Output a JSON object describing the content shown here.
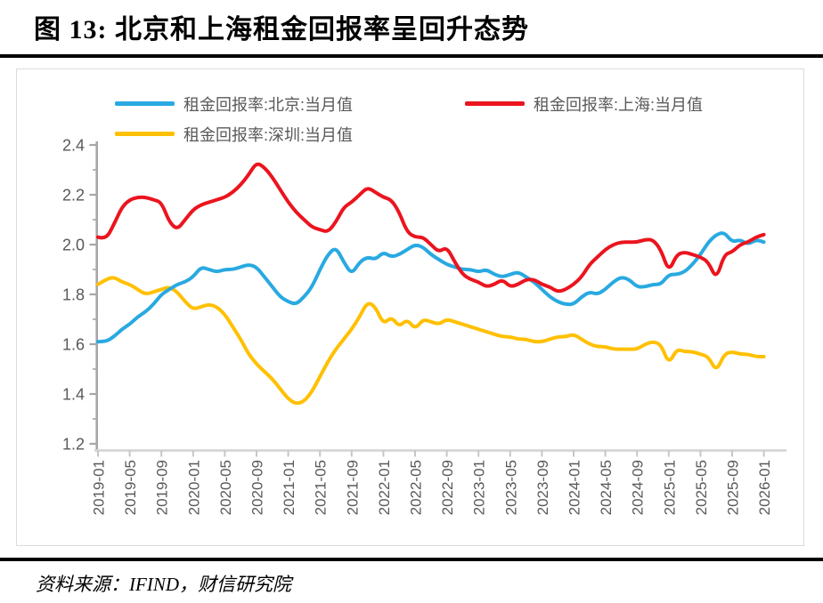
{
  "title": "图 13:  北京和上海租金回报率呈回升态势",
  "source": "资料来源：IFIND，财信研究院",
  "colors": {
    "beijing_line": "#29A9E1",
    "shanghai_line": "#EB141E",
    "shenzhen_line": "#FFC000",
    "axis_text": "#595959",
    "y_axis_line": "#A6A6A6",
    "x_axis_line": "#D6D6D6",
    "panel_border": "#DBDBDB",
    "rule_black": "#000000"
  },
  "chart_data": {
    "type": "line",
    "title": "图 13:  北京和上海租金回报率呈回升态势",
    "xlabel": "",
    "ylabel": "",
    "x_start": "2019-01",
    "x_interval_months": 1,
    "x_tick_labels": [
      "2019-01",
      "2019-05",
      "2019-09",
      "2020-01",
      "2020-05",
      "2020-09",
      "2021-01",
      "2021-05",
      "2021-09",
      "2022-01",
      "2022-05",
      "2022-09",
      "2023-01",
      "2023-05",
      "2023-09",
      "2024-01",
      "2024-05",
      "2024-09",
      "2025-01",
      "2025-05",
      "2025-09",
      "2026-01"
    ],
    "ylim": [
      1.2,
      2.4
    ],
    "y_tick_step": 0.2,
    "y_minor_tick_step": 0.1,
    "grid": false,
    "legend_position": "top-inside",
    "series": [
      {
        "name": "租金回报率:北京:当月值",
        "color": "#29A9E1",
        "values": [
          1.61,
          1.61,
          1.63,
          1.66,
          1.68,
          1.71,
          1.73,
          1.76,
          1.8,
          1.82,
          1.84,
          1.85,
          1.87,
          1.91,
          1.9,
          1.89,
          1.9,
          1.9,
          1.91,
          1.92,
          1.91,
          1.87,
          1.83,
          1.79,
          1.77,
          1.76,
          1.79,
          1.83,
          1.9,
          1.96,
          1.99,
          1.93,
          1.88,
          1.93,
          1.95,
          1.94,
          1.97,
          1.95,
          1.96,
          1.98,
          2.0,
          1.99,
          1.96,
          1.94,
          1.92,
          1.91,
          1.9,
          1.9,
          1.89,
          1.9,
          1.88,
          1.87,
          1.88,
          1.89,
          1.87,
          1.85,
          1.82,
          1.79,
          1.77,
          1.76,
          1.76,
          1.79,
          1.81,
          1.8,
          1.82,
          1.85,
          1.87,
          1.86,
          1.83,
          1.83,
          1.84,
          1.84,
          1.88,
          1.88,
          1.89,
          1.92,
          1.96,
          2.01,
          2.04,
          2.05,
          2.01,
          2.02,
          2.0,
          2.02,
          2.01
        ]
      },
      {
        "name": "租金回报率:上海:当月值",
        "color": "#EB141E",
        "values": [
          2.03,
          2.02,
          2.08,
          2.15,
          2.18,
          2.19,
          2.19,
          2.18,
          2.17,
          2.09,
          2.06,
          2.1,
          2.14,
          2.16,
          2.17,
          2.18,
          2.19,
          2.21,
          2.24,
          2.28,
          2.33,
          2.31,
          2.27,
          2.22,
          2.17,
          2.13,
          2.1,
          2.07,
          2.06,
          2.05,
          2.09,
          2.15,
          2.17,
          2.2,
          2.23,
          2.21,
          2.19,
          2.18,
          2.13,
          2.05,
          2.03,
          2.03,
          2.0,
          1.97,
          1.99,
          1.93,
          1.88,
          1.86,
          1.85,
          1.83,
          1.84,
          1.86,
          1.83,
          1.84,
          1.86,
          1.86,
          1.84,
          1.83,
          1.81,
          1.82,
          1.84,
          1.87,
          1.92,
          1.95,
          1.98,
          2.0,
          2.01,
          2.01,
          2.01,
          2.02,
          2.02,
          1.98,
          1.89,
          1.96,
          1.97,
          1.96,
          1.95,
          1.93,
          1.86,
          1.96,
          1.97,
          2.0,
          2.01,
          2.03,
          2.04
        ]
      },
      {
        "name": "租金回报率:深圳:当月值",
        "color": "#FFC000",
        "values": [
          1.84,
          1.86,
          1.87,
          1.85,
          1.84,
          1.82,
          1.8,
          1.81,
          1.82,
          1.83,
          1.81,
          1.77,
          1.74,
          1.75,
          1.76,
          1.75,
          1.72,
          1.67,
          1.62,
          1.56,
          1.52,
          1.49,
          1.46,
          1.42,
          1.38,
          1.36,
          1.37,
          1.41,
          1.47,
          1.53,
          1.58,
          1.62,
          1.66,
          1.71,
          1.77,
          1.75,
          1.68,
          1.71,
          1.67,
          1.7,
          1.66,
          1.7,
          1.69,
          1.68,
          1.7,
          1.69,
          1.68,
          1.67,
          1.66,
          1.65,
          1.64,
          1.63,
          1.63,
          1.62,
          1.62,
          1.61,
          1.61,
          1.62,
          1.63,
          1.63,
          1.64,
          1.62,
          1.6,
          1.59,
          1.59,
          1.58,
          1.58,
          1.58,
          1.58,
          1.6,
          1.61,
          1.6,
          1.52,
          1.58,
          1.57,
          1.57,
          1.56,
          1.55,
          1.49,
          1.56,
          1.57,
          1.56,
          1.56,
          1.55,
          1.55
        ]
      }
    ]
  }
}
